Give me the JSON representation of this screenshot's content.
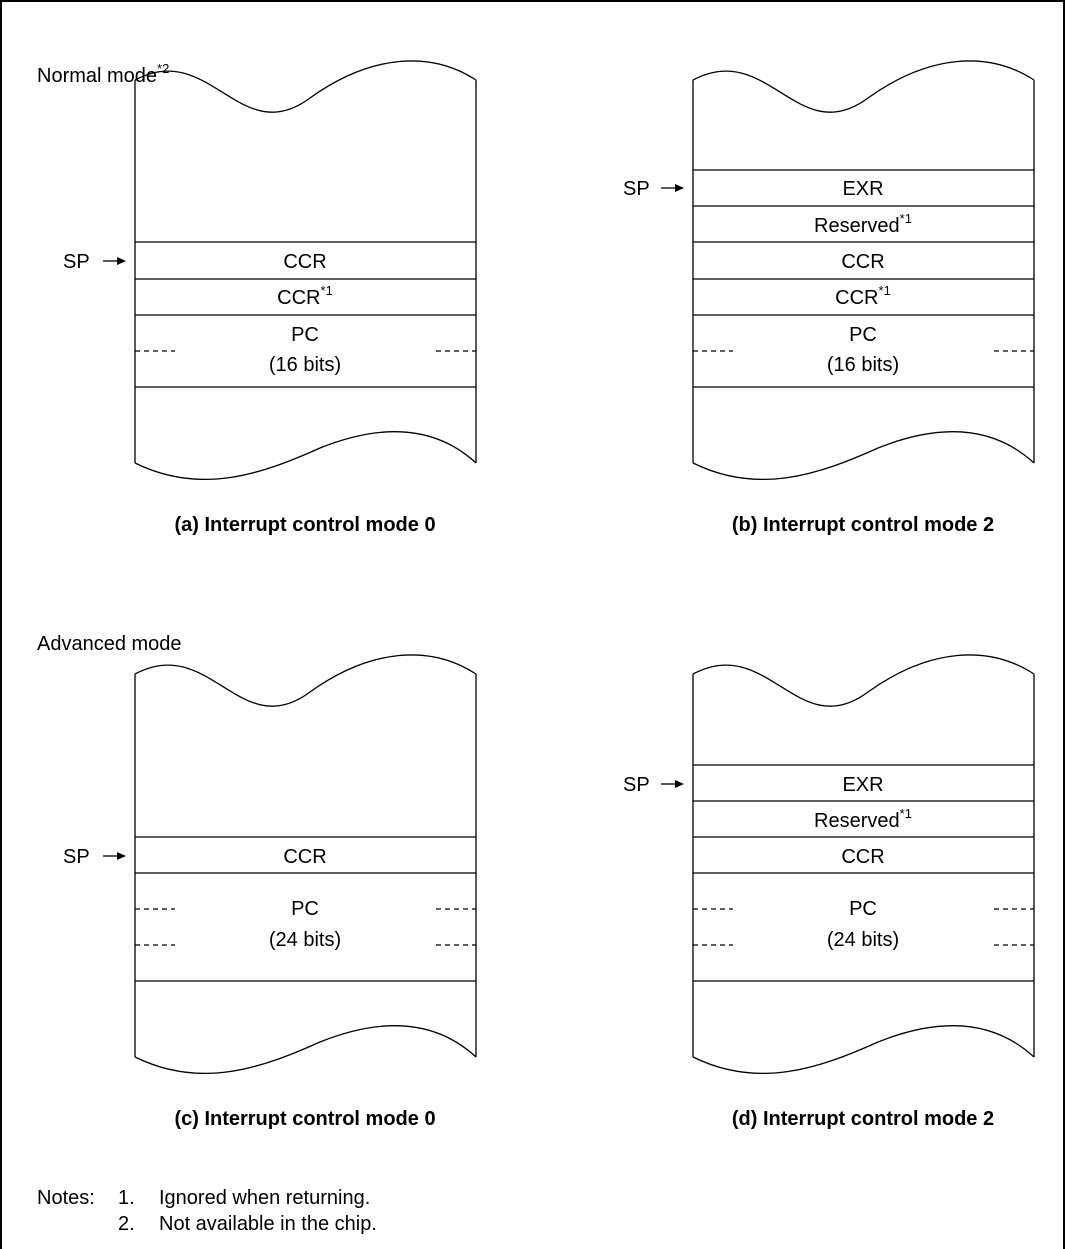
{
  "sections": {
    "normal_title": "Normal mode",
    "normal_title_sup": "*2",
    "advanced_title": "Advanced mode"
  },
  "sp_label": "SP",
  "diagrams": {
    "a": {
      "caption": "(a)  Interrupt control mode 0",
      "cells": [
        {
          "text": "CCR",
          "sup": ""
        },
        {
          "text": "CCR",
          "sup": "*1"
        },
        {
          "text": "PC",
          "text2": "(16 bits)"
        }
      ]
    },
    "b": {
      "caption": "(b)  Interrupt control mode 2",
      "cells": [
        {
          "text": "EXR",
          "sup": ""
        },
        {
          "text": "Reserved",
          "sup": "*1"
        },
        {
          "text": "CCR",
          "sup": ""
        },
        {
          "text": "CCR",
          "sup": "*1"
        },
        {
          "text": "PC",
          "text2": "(16 bits)"
        }
      ]
    },
    "c": {
      "caption": "(c)  Interrupt control mode 0",
      "cells": [
        {
          "text": "CCR",
          "sup": ""
        },
        {
          "text": "PC",
          "text2": "(24 bits)"
        }
      ]
    },
    "d": {
      "caption": "(d)  Interrupt control mode 2",
      "cells": [
        {
          "text": "EXR",
          "sup": ""
        },
        {
          "text": "Reserved",
          "sup": "*1"
        },
        {
          "text": "CCR",
          "sup": ""
        },
        {
          "text": "PC",
          "text2": "(24 bits)"
        }
      ]
    }
  },
  "notes": {
    "label": "Notes:",
    "items": [
      {
        "num": "1.",
        "text": "Ignored when returning."
      },
      {
        "num": "2.",
        "text": "Not available in the chip."
      }
    ]
  }
}
